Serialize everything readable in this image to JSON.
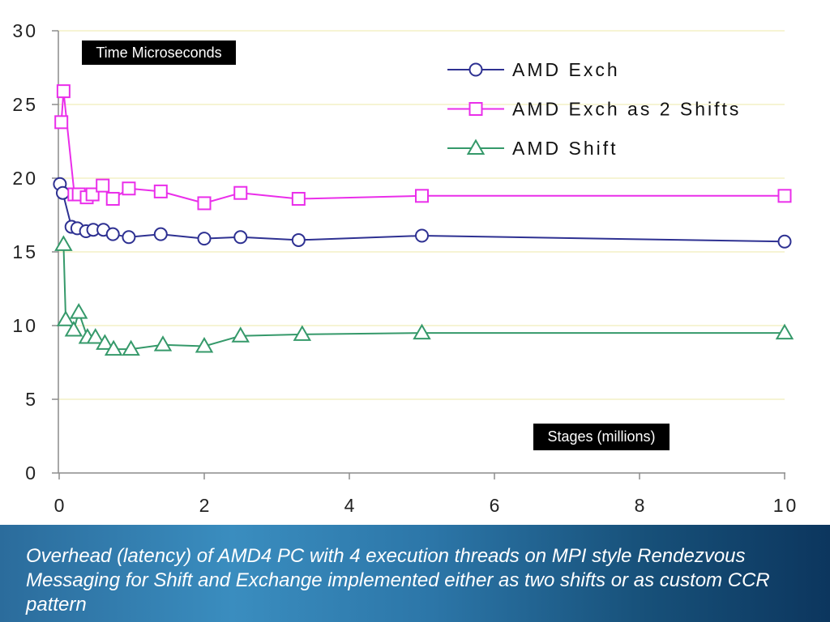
{
  "chart_data": {
    "type": "line",
    "xlabel": "Stages (millions)",
    "ylabel": "Time Microseconds",
    "xlim": [
      0,
      10
    ],
    "ylim": [
      0,
      30
    ],
    "xticks": [
      0,
      2,
      4,
      6,
      8,
      10
    ],
    "yticks": [
      0,
      5,
      10,
      15,
      20,
      25,
      30
    ],
    "grid": "horizontal",
    "legend_position": "top-right",
    "series": [
      {
        "name": "AMD Exch",
        "color": "#2e3192",
        "marker": "circle",
        "x": [
          0.01,
          0.05,
          0.17,
          0.25,
          0.37,
          0.47,
          0.61,
          0.74,
          0.96,
          1.4,
          2.0,
          2.5,
          3.3,
          5.0,
          10.0
        ],
        "y": [
          19.6,
          19.0,
          16.7,
          16.6,
          16.4,
          16.5,
          16.5,
          16.2,
          16.0,
          16.2,
          15.9,
          16.0,
          15.8,
          16.1,
          15.7
        ]
      },
      {
        "name": "AMD Exch as 2 Shifts",
        "color": "#ea2eea",
        "marker": "square",
        "x": [
          0.03,
          0.06,
          0.21,
          0.27,
          0.38,
          0.46,
          0.6,
          0.74,
          0.96,
          1.4,
          2.0,
          2.5,
          3.3,
          5.0,
          10.0
        ],
        "y": [
          23.8,
          25.9,
          18.9,
          18.9,
          18.7,
          18.9,
          19.5,
          18.6,
          19.3,
          19.1,
          18.3,
          19.0,
          18.6,
          18.8,
          18.8
        ]
      },
      {
        "name": "AMD Shift",
        "color": "#35996a",
        "marker": "triangle",
        "x": [
          0.06,
          0.09,
          0.2,
          0.27,
          0.39,
          0.5,
          0.63,
          0.75,
          0.99,
          1.43,
          2.0,
          2.5,
          3.35,
          5.0,
          10.0
        ],
        "y": [
          15.5,
          10.4,
          9.7,
          10.9,
          9.2,
          9.2,
          8.8,
          8.4,
          8.4,
          8.7,
          8.6,
          9.3,
          9.4,
          9.5,
          9.5
        ]
      }
    ]
  },
  "caption": {
    "lines": [
      "Overhead (latency) of AMD4 PC with 4 execution threads on MPI style Rendezvous",
      "Messaging for Shift and Exchange implemented either as two shifts or as custom CCR",
      "pattern"
    ]
  }
}
